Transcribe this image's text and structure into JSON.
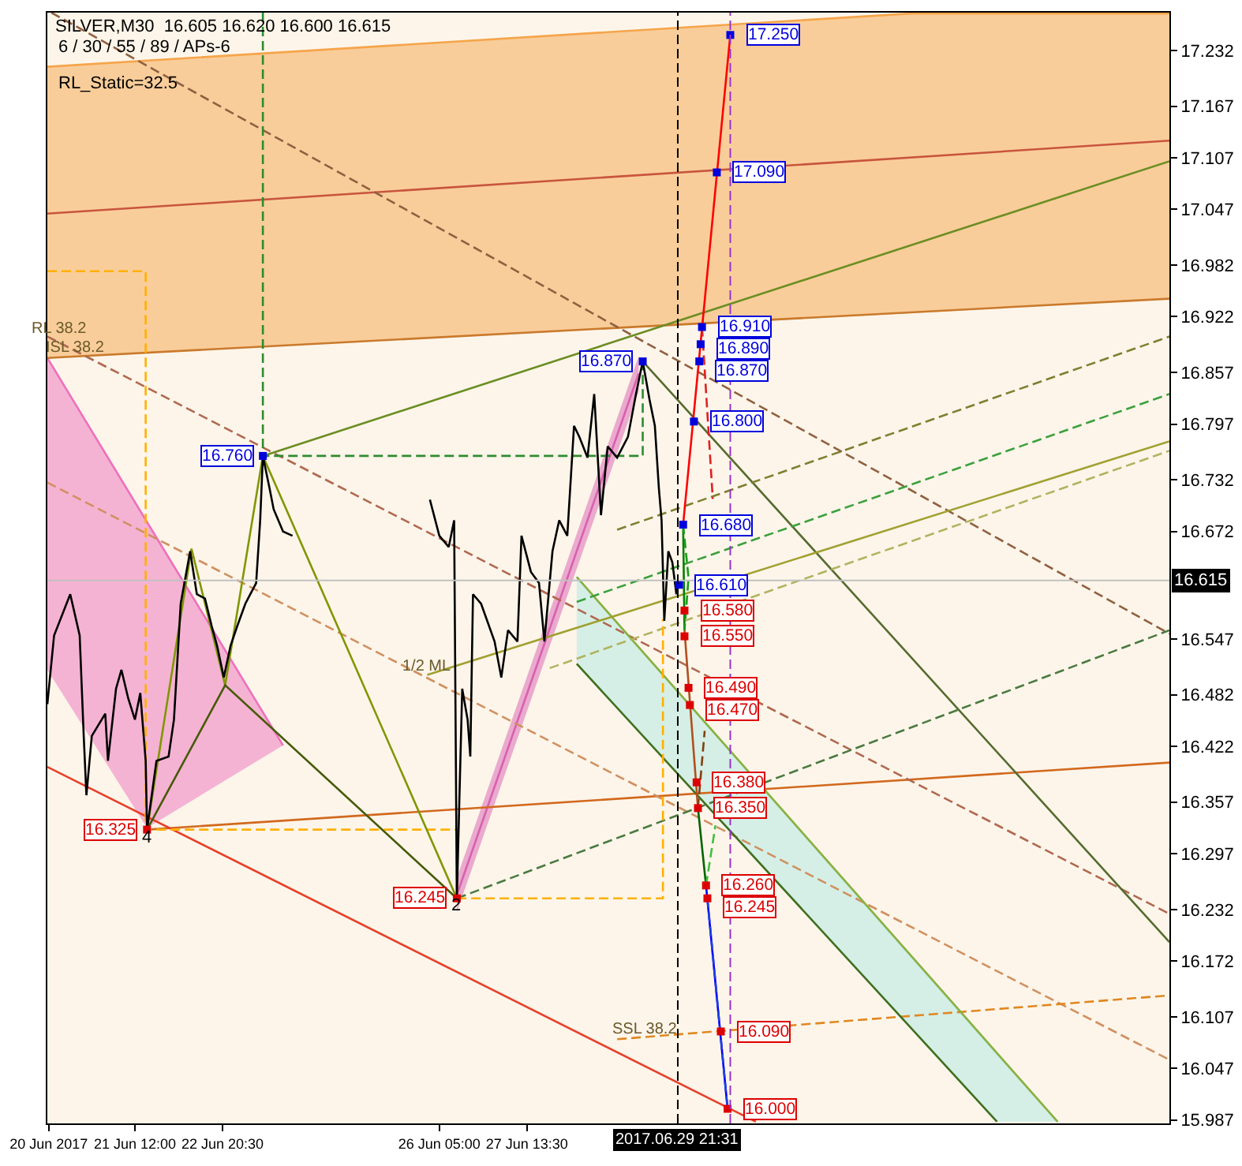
{
  "chart_data": {
    "type": "line",
    "title": "SILVER,M30  16.605 16.620 16.600 16.615",
    "subtitle": "6 / 30 / 55 / 89 / APs-6",
    "annotations": [
      "RL_Static=32.5",
      {
        "text": "4",
        "x": "2017-06-21T16:30",
        "y": 16.325
      },
      {
        "text": "2",
        "x": "2017-06-26T11:30",
        "y": 16.245
      },
      {
        "text": "1/2 ML",
        "x": "2017-06-26T00:30",
        "y": 16.505
      },
      {
        "text": "ISL 38.2",
        "x": "2017-06-20T13:30",
        "y": 16.876
      },
      {
        "text": "RL 38.2",
        "x": "2017-06-20T08:00",
        "y": 16.897
      },
      {
        "text": "SSL 38.2",
        "x": "2017-06-29T09:30",
        "y": 16.083
      }
    ],
    "xlim": [
      "2017-06-20T03:30",
      "2017-07-07T12:00"
    ],
    "xticks": [
      {
        "value": "2017-06-20T04:00",
        "label": "20 Jun 2017"
      },
      {
        "value": "2017-06-21T12:00",
        "label": "21 Jun 12:00"
      },
      {
        "value": "2017-06-22T20:30",
        "label": "22 Jun 20:30"
      },
      {
        "value": "2017-06-26T05:00",
        "label": "26 Jun 05:00"
      },
      {
        "value": "2017-06-27T13:30",
        "label": "27 Jun 13:30"
      }
    ],
    "ylim": [
      15.983,
      17.276
    ],
    "yticks": [
      17.232,
      17.167,
      17.107,
      17.047,
      16.982,
      16.922,
      16.857,
      16.797,
      16.732,
      16.672,
      16.547,
      16.482,
      16.422,
      16.357,
      16.297,
      16.232,
      16.172,
      16.107,
      16.047,
      15.987
    ],
    "grid": false,
    "ref_lines": [
      {
        "axis": "y",
        "value": 16.615,
        "label": "16.615",
        "color": "#c0c0c0"
      },
      {
        "axis": "x",
        "value": "2017-06-29T21:31",
        "label": "2017.06.29 21:31",
        "color": "#000000",
        "line_style": "dashed"
      },
      {
        "axis": "x",
        "value": "2017-06-30T17:00",
        "color": "#9932cc",
        "line_style": "dashed"
      }
    ],
    "series": [
      {
        "color": "#f5a54a",
        "x": [
          "2017-06-20T03:30",
          "2017-07-03T12:00",
          "2017-07-07T12:00"
        ],
        "values": [
          17.213,
          17.275,
          17.275
        ],
        "upper": [
          17.213,
          17.275,
          17.275
        ],
        "lower": [
          16.874,
          16.926,
          16.943
        ]
      },
      {
        "color": "#ed71bc",
        "x": [
          "2017-06-20T03:30",
          "2017-06-21T16:30",
          "2017-06-23T19:00"
        ],
        "values": [
          16.874,
          16.683,
          16.423
        ],
        "upper": [
          16.874,
          16.683,
          16.423
        ],
        "lower": [
          16.511,
          16.327,
          16.423
        ]
      },
      {
        "color": "#ade9e2",
        "x": [
          "2017-06-28T08:00",
          "2017-07-04T20:00",
          "2017-07-05T18:30"
        ],
        "values": [
          16.619,
          16.064,
          15.985
        ],
        "upper": [
          16.619,
          16.064,
          15.985
        ],
        "lower": [
          16.518,
          15.985,
          15.985
        ]
      },
      {
        "color": "#d860b0",
        "x": [
          "2017-06-26T11:30",
          "2017-06-29T07:00"
        ],
        "values": [
          16.249,
          16.856
        ],
        "upper": [
          16.269,
          16.876
        ],
        "lower": [
          16.229,
          16.835
        ]
      },
      {
        "color": "#c97a2c",
        "x": [
          "2017-06-20T03:30",
          "2017-07-07T12:00"
        ],
        "values": [
          16.874,
          16.943
        ]
      },
      {
        "color": "#c8553d",
        "x": [
          "2017-06-20T03:30",
          "2017-07-07T12:00"
        ],
        "values": [
          17.042,
          17.127
        ]
      },
      {
        "color": "#d2691e",
        "x": [
          "2017-06-21T16:30",
          "2017-07-07T12:00"
        ],
        "values": [
          16.325,
          16.403
        ]
      },
      {
        "color": "#e8402a",
        "x": [
          "2017-06-20T03:30",
          "2017-07-01T02:30"
        ],
        "values": [
          16.398,
          15.985
        ]
      },
      {
        "color": "#906040",
        "line_style": "dashed",
        "x": [
          "2017-06-20T05:00",
          "2017-07-07T12:00"
        ],
        "values": [
          17.276,
          16.553
        ]
      },
      {
        "color": "#b06850",
        "line_style": "dashed",
        "x": [
          "2017-06-20T03:30",
          "2017-07-07T12:00"
        ],
        "values": [
          16.899,
          16.227
        ]
      },
      {
        "color": "#d09060",
        "line_style": "dashed",
        "x": [
          "2017-06-20T03:30",
          "2017-07-07T12:00"
        ],
        "values": [
          16.729,
          16.057
        ]
      },
      {
        "color": "#e08820",
        "line_style": "dashed",
        "x": [
          "2017-06-28T23:00",
          "2017-07-07T12:00"
        ],
        "values": [
          16.081,
          16.132
        ]
      },
      {
        "color": "#6b8e23",
        "x": [
          "2017-06-23T11:30",
          "2017-07-07T12:00"
        ],
        "values": [
          16.76,
          17.103
        ]
      },
      {
        "color": "#556b2f",
        "x": [
          "2017-06-29T08:30",
          "2017-07-07T12:00"
        ],
        "values": [
          16.87,
          16.194
        ]
      },
      {
        "color": "#8bb040",
        "x": [
          "2017-06-28T08:00",
          "2017-07-05T18:30"
        ],
        "values": [
          16.619,
          15.985
        ]
      },
      {
        "color": "#3f6f1f",
        "x": [
          "2017-06-28T08:00",
          "2017-07-04T20:00"
        ],
        "values": [
          16.518,
          15.985
        ]
      },
      {
        "color": "#a0a030",
        "x": [
          "2017-06-26T00:30",
          "2017-07-07T12:00"
        ],
        "values": [
          16.505,
          16.777
        ]
      },
      {
        "color": "#4a7a40",
        "line_style": "dashed",
        "x": [
          "2017-06-26T11:30",
          "2017-07-07T12:00"
        ],
        "values": [
          16.245,
          16.557
        ]
      },
      {
        "color": "#b0b460",
        "line_style": "dashed",
        "x": [
          "2017-06-27T22:00",
          "2017-07-07T12:00"
        ],
        "values": [
          16.513,
          16.766
        ]
      },
      {
        "color": "#3ca03c",
        "line_style": "dashed",
        "x": [
          "2017-06-28T08:00",
          "2017-07-07T12:00"
        ],
        "values": [
          16.59,
          16.832
        ]
      },
      {
        "color": "#7f7f30",
        "line_style": "dashed",
        "x": [
          "2017-06-28T23:00",
          "2017-07-07T12:00"
        ],
        "values": [
          16.674,
          16.899
        ]
      },
      {
        "color": "#ffb000",
        "line_style": "dashed",
        "x": [
          "2017-06-20T03:30",
          "2017-06-21T16:00",
          "2017-06-21T16:00",
          "2017-06-26T11:30",
          "2017-06-26T11:30",
          "2017-06-29T16:00",
          "2017-06-29T16:00"
        ],
        "values": [
          16.975,
          16.975,
          16.325,
          16.325,
          16.245,
          16.245,
          16.57
        ]
      },
      {
        "color": "#2e8b2e",
        "line_style": "dashed",
        "x": [
          "2017-06-23T11:30",
          "2017-06-23T11:30",
          "2017-06-29T08:30",
          "2017-06-29T08:30"
        ],
        "values": [
          17.276,
          16.76,
          16.76,
          16.87
        ]
      },
      {
        "color": "#809600",
        "x": [
          "2017-06-21T16:30",
          "2017-06-22T09:00",
          "2017-06-22T21:30",
          "2017-06-23T11:30",
          "2017-06-26T11:30"
        ],
        "values": [
          16.325,
          16.652,
          16.493,
          16.76,
          16.245
        ]
      },
      {
        "color": "#465a0a",
        "x": [
          "2017-06-21T16:30",
          "2017-06-22T21:30",
          "2017-06-26T11:30"
        ],
        "values": [
          16.325,
          16.493,
          16.245
        ]
      },
      {
        "color": "#000000",
        "x": [
          "2017-06-20T03:30",
          "2017-06-20T06:00",
          "2017-06-20T12:00",
          "2017-06-20T15:30",
          "2017-06-20T17:00",
          "2017-06-20T18:00",
          "2017-06-20T20:00",
          "2017-06-21T01:00",
          "2017-06-21T02:00",
          "2017-06-21T05:00",
          "2017-06-21T07:00",
          "2017-06-21T09:30",
          "2017-06-21T12:00",
          "2017-06-21T14:00",
          "2017-06-21T16:00",
          "2017-06-21T16:30",
          "2017-06-21T20:00",
          "2017-06-22T00:30",
          "2017-06-22T02:30",
          "2017-06-22T05:00",
          "2017-06-22T08:30",
          "2017-06-22T11:00",
          "2017-06-22T14:00",
          "2017-06-22T16:30",
          "2017-06-22T18:30",
          "2017-06-22T21:00",
          "2017-06-22T23:30",
          "2017-06-23T02:00",
          "2017-06-23T05:00",
          "2017-06-23T09:00",
          "2017-06-23T10:30",
          "2017-06-23T11:30",
          "2017-06-23T14:00",
          "2017-06-23T15:30",
          "2017-06-23T19:00",
          "2017-06-23T22:30",
          "2017-06-25T00:00",
          "2017-06-26T01:30",
          "2017-06-26T05:00",
          "2017-06-26T08:30",
          "2017-06-26T10:30",
          "2017-06-26T11:30",
          "2017-06-26T13:30",
          "2017-06-26T15:30",
          "2017-06-26T16:30",
          "2017-06-26T17:30",
          "2017-06-26T20:30",
          "2017-06-27T01:30",
          "2017-06-27T04:00",
          "2017-06-27T06:30",
          "2017-06-27T10:00",
          "2017-06-27T11:30",
          "2017-06-27T15:00",
          "2017-06-27T18:00",
          "2017-06-27T20:00",
          "2017-06-27T23:00",
          "2017-06-28T01:30",
          "2017-06-28T04:30",
          "2017-06-28T07:00",
          "2017-06-28T09:00",
          "2017-06-28T12:00",
          "2017-06-28T14:30",
          "2017-06-28T17:00",
          "2017-06-28T19:30",
          "2017-06-28T23:00",
          "2017-06-29T03:00",
          "2017-06-29T06:00",
          "2017-06-29T08:30",
          "2017-06-29T11:00",
          "2017-06-29T13:00",
          "2017-06-29T14:30",
          "2017-06-29T15:30",
          "2017-06-29T16:30",
          "2017-06-29T18:00",
          "2017-06-29T19:30",
          "2017-06-29T21:00",
          "2017-06-29T21:30"
        ],
        "values": [
          16.471,
          16.551,
          16.599,
          16.551,
          16.434,
          16.365,
          16.434,
          16.46,
          16.405,
          16.489,
          16.511,
          16.478,
          16.453,
          16.484,
          16.405,
          16.325,
          16.405,
          16.41,
          16.453,
          16.588,
          16.649,
          16.599,
          16.594,
          16.562,
          16.539,
          16.502,
          16.539,
          16.562,
          16.588,
          16.612,
          16.685,
          16.76,
          16.722,
          16.698,
          16.672,
          16.667,
          null,
          16.709,
          16.667,
          16.654,
          16.685,
          16.245,
          16.489,
          16.453,
          16.41,
          16.599,
          16.588,
          16.544,
          16.502,
          16.557,
          16.544,
          16.667,
          16.625,
          16.612,
          16.544,
          16.649,
          16.685,
          16.667,
          16.795,
          16.782,
          16.758,
          16.832,
          16.691,
          16.771,
          16.758,
          16.782,
          16.832,
          16.87,
          16.826,
          16.795,
          16.722,
          16.685,
          16.568,
          16.649,
          16.636,
          16.599,
          16.615
        ]
      },
      {
        "color": "#ff0000",
        "x": [
          "2017-06-29T23:30",
          "2017-06-30T17:00"
        ],
        "values": [
          16.68,
          17.25
        ]
      },
      {
        "color": "#e02020",
        "line_style": "dashed",
        "x": [
          "2017-06-30T06:30",
          "2017-06-30T10:30"
        ],
        "values": [
          16.91,
          16.71
        ]
      },
      {
        "color": "#008000",
        "x": [
          "2017-06-29T23:30",
          "2017-06-30T00:00"
        ],
        "values": [
          16.68,
          16.557
        ]
      },
      {
        "color": "#1a9a1a",
        "line_style": "dashed",
        "x": [
          "2017-06-29T23:30",
          "2017-06-30T01:30",
          "2017-06-30T00:00"
        ],
        "values": [
          16.68,
          16.618,
          16.557
        ]
      },
      {
        "color": "#b0501e",
        "x": [
          "2017-06-30T00:00",
          "2017-06-30T05:00"
        ],
        "values": [
          16.557,
          16.35
        ]
      },
      {
        "color": "#804010",
        "line_style": "dashed",
        "x": [
          "2017-06-30T05:00",
          "2017-06-30T07:30"
        ],
        "values": [
          16.35,
          16.44
        ]
      },
      {
        "color": "#006400",
        "x": [
          "2017-06-30T05:00",
          "2017-06-30T08:00"
        ],
        "values": [
          16.35,
          16.26
        ]
      },
      {
        "color": "#40c040",
        "line_style": "dashed",
        "x": [
          "2017-06-30T08:00",
          "2017-06-30T11:30"
        ],
        "values": [
          16.26,
          16.33
        ]
      },
      {
        "color": "#0000ff",
        "x": [
          "2017-06-30T08:00",
          "2017-06-30T16:00"
        ],
        "values": [
          16.26,
          16.0
        ]
      },
      {
        "color": "#2040e0",
        "line_style": "dashed",
        "x": [
          "2017-06-30T08:30",
          "2017-06-30T16:00"
        ],
        "values": [
          16.245,
          16.0
        ]
      },
      {
        "type": "scatter",
        "color": "#0000dd",
        "marker": "square",
        "x": [
          "2017-06-30T17:00",
          "2017-06-30T12:00",
          "2017-06-30T06:30",
          "2017-06-30T06:00",
          "2017-06-30T05:30",
          "2017-06-30T03:30",
          "2017-06-29T23:30",
          "2017-06-29T22:00",
          "2017-06-29T08:30",
          "2017-06-23T11:30"
        ],
        "values": [
          17.25,
          17.09,
          16.91,
          16.89,
          16.87,
          16.8,
          16.68,
          16.61,
          16.87,
          16.76
        ],
        "value_labels": [
          "17.250",
          "17.090",
          "16.910",
          "16.890",
          "16.870",
          "16.800",
          "16.680",
          "16.610",
          "16.870",
          "16.760"
        ]
      },
      {
        "type": "scatter",
        "color": "#dd0000",
        "marker": "square",
        "x": [
          "2017-06-30T00:00",
          "2017-06-30T00:00",
          "2017-06-30T01:30",
          "2017-06-30T02:00",
          "2017-06-30T04:30",
          "2017-06-30T05:00",
          "2017-06-30T08:00",
          "2017-06-30T08:30",
          "2017-06-30T13:30",
          "2017-06-30T16:00",
          "2017-06-21T16:30",
          "2017-06-26T11:30"
        ],
        "values": [
          16.58,
          16.55,
          16.49,
          16.47,
          16.38,
          16.35,
          16.26,
          16.245,
          16.09,
          16.0,
          16.325,
          16.245
        ],
        "value_labels": [
          "16.580",
          "16.550",
          "16.490",
          "16.470",
          "16.380",
          "16.350",
          "16.260",
          "16.245",
          "16.090",
          "16.000",
          "16.325",
          "16.245"
        ]
      }
    ]
  }
}
